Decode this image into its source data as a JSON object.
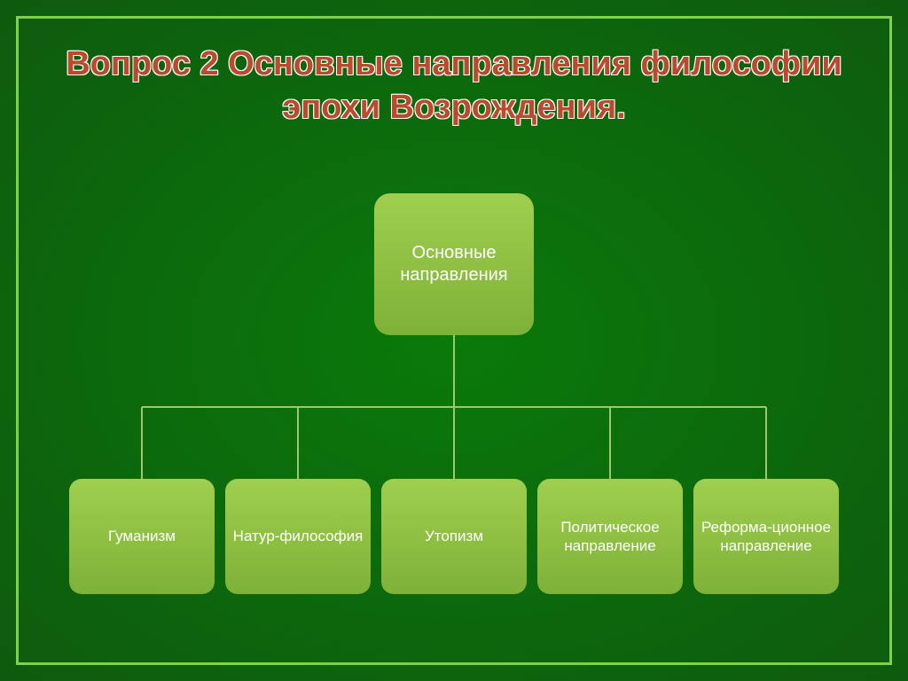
{
  "slide": {
    "background_gradient": {
      "from": "#0a7a0a",
      "to": "#0e5a0e",
      "type": "radial"
    },
    "border_color": "#7fd04a",
    "border_width": 3,
    "title": {
      "text": "Вопрос 2 Основные направления философии эпохи Возрождения.",
      "fill_color": "#b94a2e",
      "outline_color": "#ffffff",
      "font_size": 38,
      "font_weight": "bold"
    }
  },
  "diagram": {
    "type": "tree",
    "connector_color": "#9cc96b",
    "connector_width": 2,
    "root": {
      "label": "Основные направления",
      "bg_gradient_from": "#a0cf4f",
      "bg_gradient_to": "#7eb138",
      "font_size": 20,
      "text_color": "#ffffff"
    },
    "children": [
      {
        "label": "Гуманизм"
      },
      {
        "label": "Натур-философия"
      },
      {
        "label": "Утопизм"
      },
      {
        "label": "Политическое направление"
      },
      {
        "label": "Реформа-ционное направление"
      }
    ],
    "child_style": {
      "bg_gradient_from": "#a0cf4f",
      "bg_gradient_to": "#7eb138",
      "font_size": 17,
      "text_color": "#ffffff"
    }
  }
}
